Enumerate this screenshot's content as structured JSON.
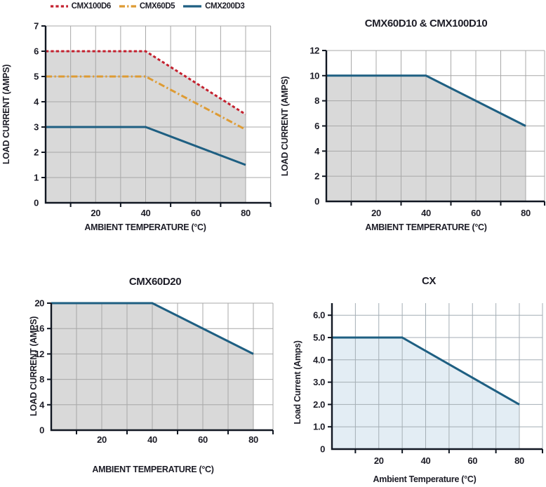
{
  "colors": {
    "red": "#c4202e",
    "orange": "#de9b33",
    "blue": "#1e5f82",
    "gray_fill": "#d9d9d9",
    "grid": "#a8a8a8",
    "cx_fill": "#e3edf4",
    "cx_grid": "#a4aeb5",
    "axis": "#111722",
    "text": "#1d1d27"
  },
  "legend": {
    "items": [
      {
        "label": "CMX100D6",
        "color": "#c4202e",
        "style": "dashed"
      },
      {
        "label": "CMX60D5",
        "color": "#de9b33",
        "style": "dashdot"
      },
      {
        "label": "CMX200D3",
        "color": "#1e5f82",
        "style": "solid"
      }
    ]
  },
  "chart_data": [
    {
      "type": "area",
      "title": "",
      "xlabel": "AMBIENT TEMPERATURE (°C)",
      "ylabel": "LOAD CURRENT (AMPS)",
      "xlim": [
        0,
        90
      ],
      "ylim": [
        0,
        7
      ],
      "x_data_max": 80,
      "grid": "on",
      "legend_position": "top",
      "x_ticks": [
        {
          "value": 20,
          "label": "20"
        },
        {
          "value": 40,
          "label": "40"
        },
        {
          "value": 60,
          "label": "60"
        },
        {
          "value": 80,
          "label": "80"
        }
      ],
      "x_minor_ticks": [
        10,
        30,
        50,
        70,
        90
      ],
      "x_gridlines": [
        10,
        20,
        30,
        40,
        50,
        60,
        70,
        80,
        90
      ],
      "y_gridlines": [
        1,
        2,
        3,
        4,
        5,
        6,
        7
      ],
      "y_ticks": [
        {
          "value": 0,
          "label": "0"
        },
        {
          "value": 1,
          "label": "1"
        },
        {
          "value": 2,
          "label": "2"
        },
        {
          "value": 3,
          "label": "3"
        },
        {
          "value": 4,
          "label": "4"
        },
        {
          "value": 5,
          "label": "5"
        },
        {
          "value": 6,
          "label": "6"
        },
        {
          "value": 7,
          "label": "7"
        }
      ],
      "plot_fill": "#d9d9d9",
      "grid_color": "#a8a8a8",
      "fill_under_series": "CMX100D6",
      "series": [
        {
          "name": "CMX100D6",
          "color": "#c4202e",
          "dash": "dashed",
          "points": [
            [
              0,
              6
            ],
            [
              40,
              6
            ],
            [
              80,
              3.5
            ]
          ]
        },
        {
          "name": "CMX60D5",
          "color": "#de9b33",
          "dash": "dashdot",
          "points": [
            [
              0,
              5
            ],
            [
              40,
              5
            ],
            [
              80,
              2.9
            ]
          ]
        },
        {
          "name": "CMX200D3",
          "color": "#1e5f82",
          "dash": "solid",
          "points": [
            [
              0,
              3
            ],
            [
              40,
              3
            ],
            [
              80,
              1.5
            ]
          ]
        }
      ]
    },
    {
      "type": "area",
      "title": "CMX60D10 & CMX100D10",
      "xlabel": "AMBIENT TEMPERATURE (°C)",
      "ylabel": "LOAD CURRENT (AMPS)",
      "xlim": [
        0,
        90
      ],
      "ylim": [
        0,
        12
      ],
      "x_data_max": 80,
      "grid": "on",
      "x_ticks": [
        {
          "value": 20,
          "label": "20"
        },
        {
          "value": 40,
          "label": "40"
        },
        {
          "value": 60,
          "label": "60"
        },
        {
          "value": 80,
          "label": "80"
        }
      ],
      "x_minor_ticks": [
        10,
        30,
        50,
        70,
        90
      ],
      "x_gridlines": [
        10,
        20,
        30,
        40,
        50,
        60,
        70,
        80,
        90
      ],
      "y_gridlines": [
        2,
        4,
        6,
        8,
        10,
        12
      ],
      "y_ticks": [
        {
          "value": 0,
          "label": "0"
        },
        {
          "value": 2,
          "label": "2"
        },
        {
          "value": 4,
          "label": "4"
        },
        {
          "value": 6,
          "label": "6"
        },
        {
          "value": 8,
          "label": "8"
        },
        {
          "value": 10,
          "label": "10"
        },
        {
          "value": 12,
          "label": "12"
        }
      ],
      "plot_fill": "#d9d9d9",
      "grid_color": "#a8a8a8",
      "fill_under_series": "CMX60D10 & CMX100D10",
      "series": [
        {
          "name": "CMX60D10 & CMX100D10",
          "color": "#1e5f82",
          "dash": "solid",
          "points": [
            [
              0,
              10
            ],
            [
              40,
              10
            ],
            [
              80,
              6
            ]
          ]
        }
      ]
    },
    {
      "type": "area",
      "title": "CMX60D20",
      "xlabel": "AMBIENT TEMPERATURE (°C)",
      "ylabel": "LOAD CURRENT (AMPS)",
      "xlim": [
        0,
        90
      ],
      "ylim": [
        0,
        20
      ],
      "x_data_max": 80,
      "grid": "on",
      "x_ticks": [
        {
          "value": 20,
          "label": "20"
        },
        {
          "value": 40,
          "label": "40"
        },
        {
          "value": 60,
          "label": "60"
        },
        {
          "value": 80,
          "label": "80"
        }
      ],
      "x_minor_ticks": [
        10,
        30,
        50,
        70,
        90
      ],
      "x_gridlines": [
        10,
        20,
        30,
        40,
        50,
        60,
        70,
        80,
        90
      ],
      "y_gridlines": [
        4,
        8,
        12,
        16,
        20
      ],
      "y_ticks": [
        {
          "value": 0,
          "label": "0"
        },
        {
          "value": 4,
          "label": "4"
        },
        {
          "value": 8,
          "label": "8"
        },
        {
          "value": 12,
          "label": "12"
        },
        {
          "value": 16,
          "label": "16"
        },
        {
          "value": 20,
          "label": "20"
        }
      ],
      "plot_fill": "#d9d9d9",
      "grid_color": "#a8a8a8",
      "fill_under_series": "CMX60D20",
      "series": [
        {
          "name": "CMX60D20",
          "color": "#1e5f82",
          "dash": "solid",
          "points": [
            [
              0,
              20
            ],
            [
              40,
              20
            ],
            [
              80,
              12
            ]
          ]
        }
      ]
    },
    {
      "type": "area",
      "title": "CX",
      "xlabel": "Ambient Temperature (°C)",
      "ylabel": "Load Current (Amps)",
      "xlim": [
        0,
        90
      ],
      "ylim": [
        0,
        6.6
      ],
      "x_data_max": 80,
      "grid": "on",
      "x_ticks": [
        {
          "value": 20,
          "label": "20"
        },
        {
          "value": 40,
          "label": "40"
        },
        {
          "value": 60,
          "label": "60"
        },
        {
          "value": 80,
          "label": "80"
        }
      ],
      "x_minor_ticks": [
        10,
        30,
        50,
        70,
        90
      ],
      "x_gridlines": [
        10,
        20,
        30,
        40,
        50,
        60,
        70,
        80,
        90
      ],
      "y_gridlines": [
        1,
        2,
        3,
        4,
        5,
        6
      ],
      "y_ticks": [
        {
          "value": 0,
          "label": "0"
        },
        {
          "value": 1,
          "label": "1.0"
        },
        {
          "value": 2,
          "label": "2.0"
        },
        {
          "value": 3,
          "label": "3.0"
        },
        {
          "value": 4,
          "label": "4.0"
        },
        {
          "value": 5,
          "label": "5.0"
        },
        {
          "value": 6,
          "label": "6.0"
        }
      ],
      "plot_fill": "#e3edf4",
      "grid_color": "#a4aeb5",
      "fill_under_series": "CX",
      "series": [
        {
          "name": "CX",
          "color": "#1e5f82",
          "dash": "solid",
          "points": [
            [
              0,
              5
            ],
            [
              30,
              5
            ],
            [
              80,
              2
            ]
          ]
        }
      ]
    }
  ]
}
